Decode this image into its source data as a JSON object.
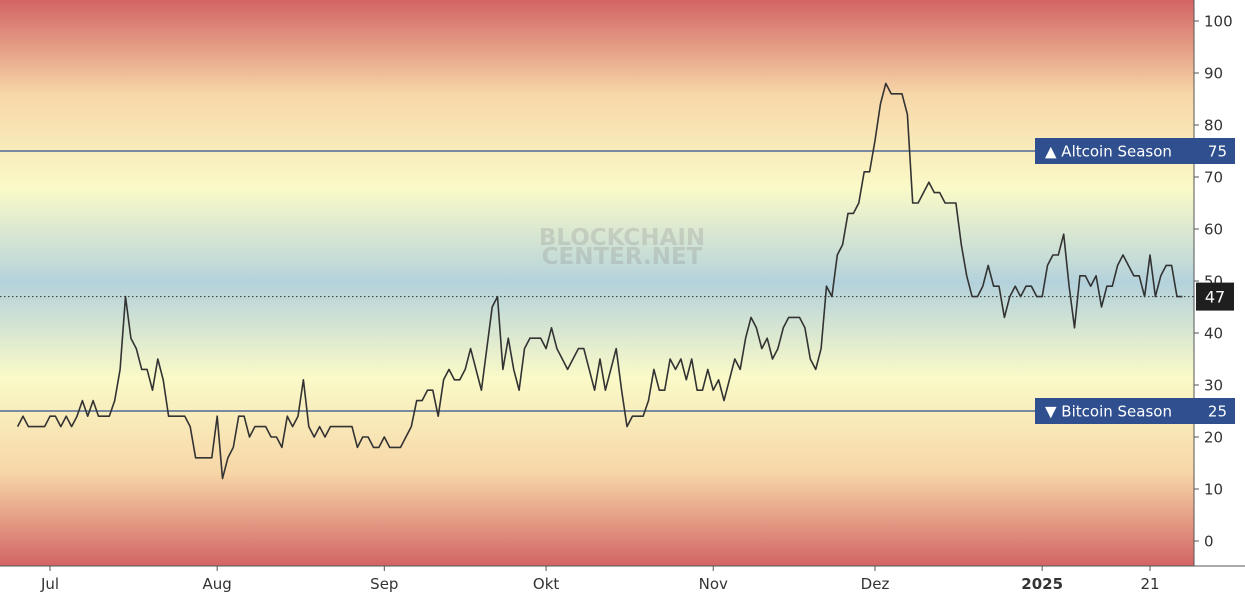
{
  "watermark": {
    "line1": "BLOCKCHAIN",
    "line2": "CENTER.NET"
  },
  "chart_data": {
    "type": "line",
    "ylim": [
      -2.5,
      102.5
    ],
    "y_ticks": [
      0,
      10,
      20,
      30,
      40,
      50,
      60,
      70,
      80,
      90,
      100
    ],
    "x_ticks": [
      {
        "label": "Jul",
        "date": "2024-07-01",
        "bold": false
      },
      {
        "label": "Aug",
        "date": "2024-08-01",
        "bold": false
      },
      {
        "label": "Sep",
        "date": "2024-09-01",
        "bold": false
      },
      {
        "label": "Okt",
        "date": "2024-10-01",
        "bold": false
      },
      {
        "label": "Nov",
        "date": "2024-11-01",
        "bold": false
      },
      {
        "label": "Dez",
        "date": "2024-12-01",
        "bold": false
      },
      {
        "label": "2025",
        "date": "2025-01-01",
        "bold": true
      },
      {
        "label": "21",
        "date": "2025-01-21",
        "bold": false
      }
    ],
    "thresholds": [
      {
        "label": "▲ Altcoin Season",
        "value": 75,
        "color": "#2f4f8f"
      },
      {
        "label": "▼ Bitcoin Season",
        "value": 25,
        "color": "#2f4f8f"
      }
    ],
    "current_value": {
      "value": 47,
      "label": "47"
    },
    "background_gradient": [
      "#d26464",
      "#f7d7a8",
      "#fafac8",
      "#b4d2dc",
      "#fafac8",
      "#f7d7a8",
      "#d26464"
    ],
    "series": [
      {
        "color": "#333333",
        "x": [
          "2024-06-25",
          "2024-06-26",
          "2024-06-27",
          "2024-06-28",
          "2024-06-29",
          "2024-06-30",
          "2024-07-01",
          "2024-07-02",
          "2024-07-03",
          "2024-07-04",
          "2024-07-05",
          "2024-07-06",
          "2024-07-07",
          "2024-07-08",
          "2024-07-09",
          "2024-07-10",
          "2024-07-11",
          "2024-07-12",
          "2024-07-13",
          "2024-07-14",
          "2024-07-15",
          "2024-07-16",
          "2024-07-17",
          "2024-07-18",
          "2024-07-19",
          "2024-07-20",
          "2024-07-21",
          "2024-07-22",
          "2024-07-23",
          "2024-07-24",
          "2024-07-25",
          "2024-07-26",
          "2024-07-27",
          "2024-07-28",
          "2024-07-29",
          "2024-07-30",
          "2024-07-31",
          "2024-08-01",
          "2024-08-02",
          "2024-08-03",
          "2024-08-04",
          "2024-08-05",
          "2024-08-06",
          "2024-08-07",
          "2024-08-08",
          "2024-08-09",
          "2024-08-10",
          "2024-08-11",
          "2024-08-12",
          "2024-08-13",
          "2024-08-14",
          "2024-08-15",
          "2024-08-16",
          "2024-08-17",
          "2024-08-18",
          "2024-08-19",
          "2024-08-20",
          "2024-08-21",
          "2024-08-22",
          "2024-08-23",
          "2024-08-24",
          "2024-08-25",
          "2024-08-26",
          "2024-08-27",
          "2024-08-28",
          "2024-08-29",
          "2024-08-30",
          "2024-08-31",
          "2024-09-01",
          "2024-09-02",
          "2024-09-03",
          "2024-09-04",
          "2024-09-05",
          "2024-09-06",
          "2024-09-07",
          "2024-09-08",
          "2024-09-09",
          "2024-09-10",
          "2024-09-11",
          "2024-09-12",
          "2024-09-13",
          "2024-09-14",
          "2024-09-15",
          "2024-09-16",
          "2024-09-17",
          "2024-09-18",
          "2024-09-19",
          "2024-09-20",
          "2024-09-21",
          "2024-09-22",
          "2024-09-23",
          "2024-09-24",
          "2024-09-25",
          "2024-09-26",
          "2024-09-27",
          "2024-09-28",
          "2024-09-29",
          "2024-09-30",
          "2024-10-01",
          "2024-10-02",
          "2024-10-03",
          "2024-10-04",
          "2024-10-05",
          "2024-10-06",
          "2024-10-07",
          "2024-10-08",
          "2024-10-09",
          "2024-10-10",
          "2024-10-11",
          "2024-10-12",
          "2024-10-13",
          "2024-10-14",
          "2024-10-15",
          "2024-10-16",
          "2024-10-17",
          "2024-10-18",
          "2024-10-19",
          "2024-10-20",
          "2024-10-21",
          "2024-10-22",
          "2024-10-23",
          "2024-10-24",
          "2024-10-25",
          "2024-10-26",
          "2024-10-27",
          "2024-10-28",
          "2024-10-29",
          "2024-10-30",
          "2024-10-31",
          "2024-11-01",
          "2024-11-02",
          "2024-11-03",
          "2024-11-04",
          "2024-11-05",
          "2024-11-06",
          "2024-11-07",
          "2024-11-08",
          "2024-11-09",
          "2024-11-10",
          "2024-11-11",
          "2024-11-12",
          "2024-11-13",
          "2024-11-14",
          "2024-11-15",
          "2024-11-16",
          "2024-11-17",
          "2024-11-18",
          "2024-11-19",
          "2024-11-20",
          "2024-11-21",
          "2024-11-22",
          "2024-11-23",
          "2024-11-24",
          "2024-11-25",
          "2024-11-26",
          "2024-11-27",
          "2024-11-28",
          "2024-11-29",
          "2024-11-30",
          "2024-12-01",
          "2024-12-02",
          "2024-12-03",
          "2024-12-04",
          "2024-12-05",
          "2024-12-06",
          "2024-12-07",
          "2024-12-08",
          "2024-12-09",
          "2024-12-10",
          "2024-12-11",
          "2024-12-12",
          "2024-12-13",
          "2024-12-14",
          "2024-12-15",
          "2024-12-16",
          "2024-12-17",
          "2024-12-18",
          "2024-12-19",
          "2024-12-20",
          "2024-12-21",
          "2024-12-22",
          "2024-12-23",
          "2024-12-24",
          "2024-12-25",
          "2024-12-26",
          "2024-12-27",
          "2024-12-28",
          "2024-12-29",
          "2024-12-30",
          "2024-12-31",
          "2025-01-01",
          "2025-01-02",
          "2025-01-03",
          "2025-01-04",
          "2025-01-05",
          "2025-01-06",
          "2025-01-07",
          "2025-01-08",
          "2025-01-09",
          "2025-01-10",
          "2025-01-11",
          "2025-01-12",
          "2025-01-13",
          "2025-01-14",
          "2025-01-15",
          "2025-01-16",
          "2025-01-17",
          "2025-01-18",
          "2025-01-19",
          "2025-01-20",
          "2025-01-21",
          "2025-01-22",
          "2025-01-23",
          "2025-01-24",
          "2025-01-25",
          "2025-01-26",
          "2025-01-27"
        ],
        "values": [
          22,
          24,
          22,
          22,
          22,
          22,
          24,
          24,
          22,
          24,
          22,
          24,
          27,
          24,
          27,
          24,
          24,
          24,
          27,
          33,
          47,
          39,
          37,
          33,
          33,
          29,
          35,
          31,
          24,
          24,
          24,
          24,
          22,
          16,
          16,
          16,
          16,
          24,
          12,
          16,
          18,
          24,
          24,
          20,
          22,
          22,
          22,
          20,
          20,
          18,
          24,
          22,
          24,
          31,
          22,
          20,
          22,
          20,
          22,
          22,
          22,
          22,
          22,
          18,
          20,
          20,
          18,
          18,
          20,
          18,
          18,
          18,
          20,
          22,
          27,
          27,
          29,
          29,
          24,
          31,
          33,
          31,
          31,
          33,
          37,
          33,
          29,
          37,
          45,
          47,
          33,
          39,
          33,
          29,
          37,
          39,
          39,
          39,
          37,
          41,
          37,
          35,
          33,
          35,
          37,
          37,
          33,
          29,
          35,
          29,
          33,
          37,
          29,
          22,
          24,
          24,
          24,
          27,
          33,
          29,
          29,
          35,
          33,
          35,
          31,
          35,
          29,
          29,
          33,
          29,
          31,
          27,
          31,
          35,
          33,
          39,
          43,
          41,
          37,
          39,
          35,
          37,
          41,
          43,
          43,
          43,
          41,
          35,
          33,
          37,
          49,
          47,
          55,
          57,
          63,
          63,
          65,
          71,
          71,
          77,
          84,
          88,
          86,
          86,
          86,
          82,
          65,
          65,
          67,
          69,
          67,
          67,
          65,
          65,
          65,
          57,
          51,
          47,
          47,
          49,
          53,
          49,
          49,
          43,
          47,
          49,
          47,
          49,
          49,
          47,
          47,
          53,
          55,
          55,
          59,
          49,
          41,
          51,
          51,
          49,
          51,
          45,
          49,
          49,
          53,
          55,
          53,
          51,
          51,
          47,
          55,
          47,
          51,
          53,
          53,
          47,
          47
        ]
      }
    ]
  }
}
